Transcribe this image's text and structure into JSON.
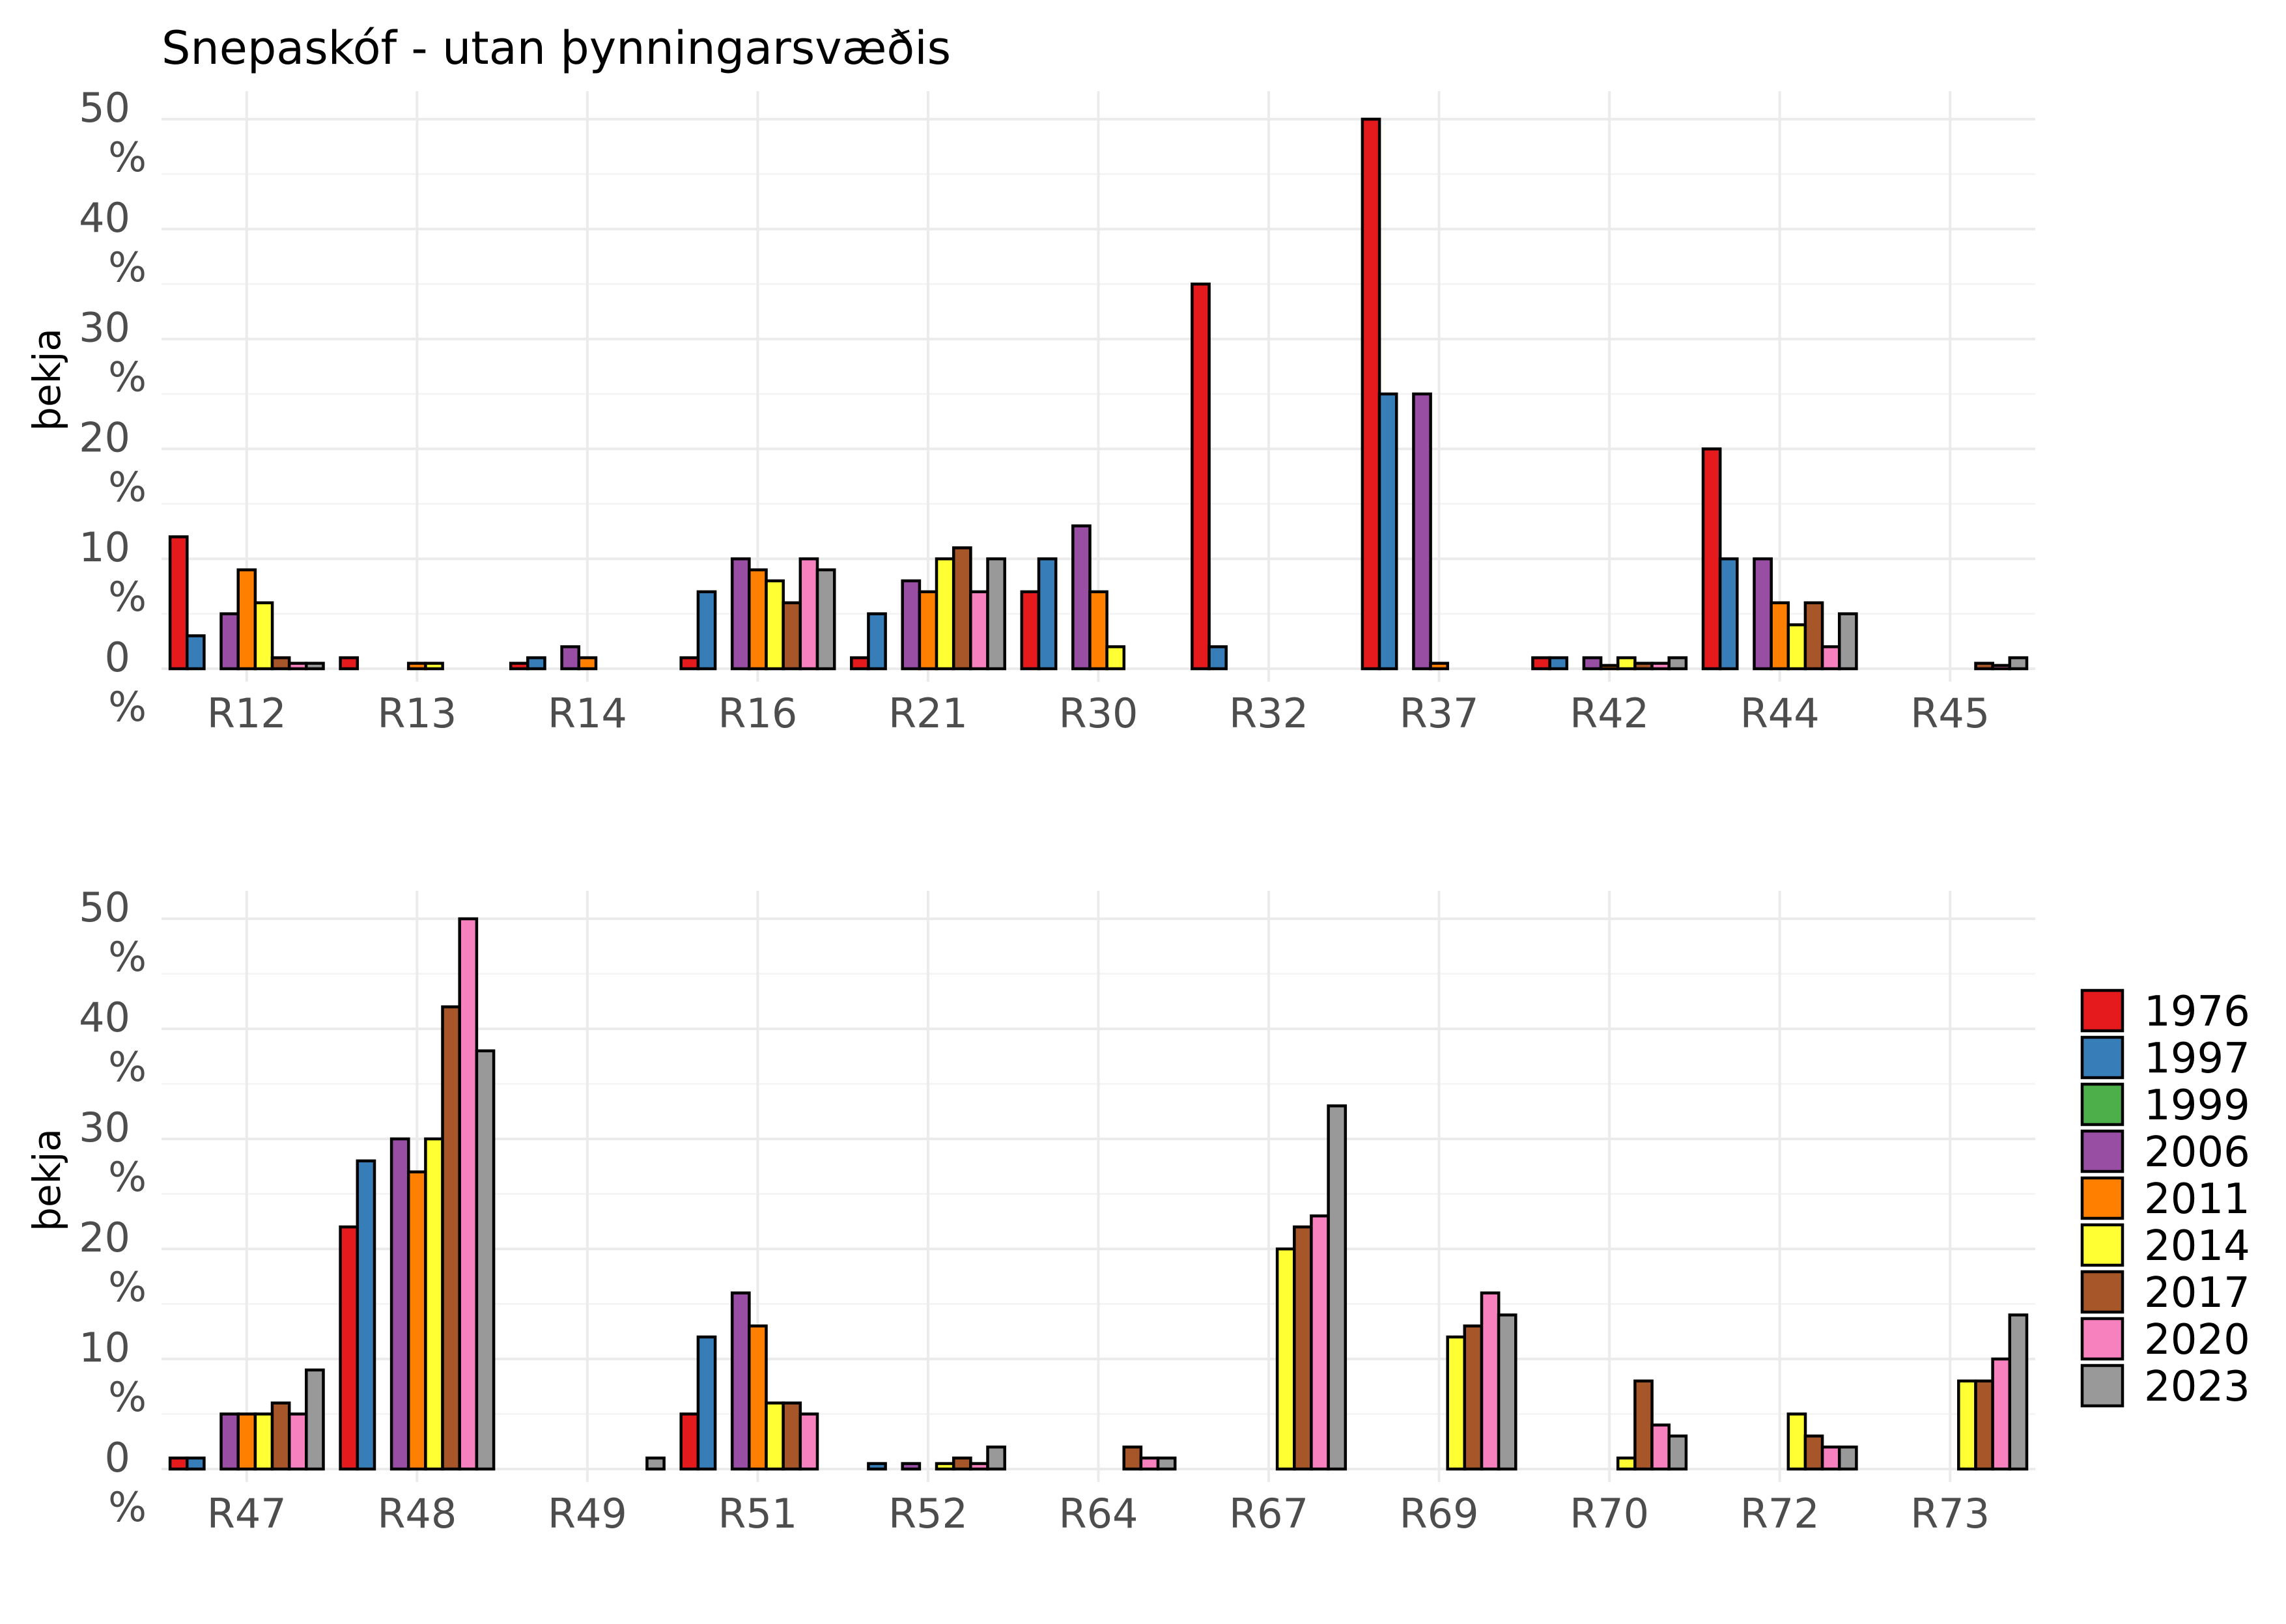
{
  "chart_data": [
    {
      "type": "bar",
      "title": "Snepaskóf - utan þynningarsvæðis",
      "ylabel": "þekja",
      "ylim": [
        0,
        50
      ],
      "ytick_values": [
        0,
        10,
        20,
        30,
        40,
        50
      ],
      "ytick_labels": [
        [
          "0",
          "%"
        ],
        [
          "10",
          "%"
        ],
        [
          "20",
          "%"
        ],
        [
          "30",
          "%"
        ],
        [
          "40",
          "%"
        ],
        [
          "50",
          "%"
        ]
      ],
      "grid": true,
      "categories": [
        "R12",
        "R13",
        "R14",
        "R16",
        "R21",
        "R30",
        "R32",
        "R37",
        "R42",
        "R44",
        "R45"
      ],
      "series": [
        {
          "name": "1976",
          "values": [
            12,
            1,
            0.5,
            1,
            1,
            7,
            35,
            50,
            1,
            20,
            null
          ]
        },
        {
          "name": "1997",
          "values": [
            3,
            null,
            1,
            7,
            5,
            10,
            2,
            25,
            1,
            10,
            null
          ]
        },
        {
          "name": "1999",
          "values": [
            null,
            null,
            null,
            null,
            null,
            null,
            null,
            null,
            null,
            null,
            null
          ]
        },
        {
          "name": "2006",
          "values": [
            5,
            null,
            2,
            10,
            8,
            13,
            null,
            25,
            1,
            10,
            null
          ]
        },
        {
          "name": "2011",
          "values": [
            9,
            0.5,
            1,
            9,
            7,
            7,
            null,
            0.5,
            0.3,
            6,
            null
          ]
        },
        {
          "name": "2014",
          "values": [
            6,
            0.5,
            null,
            8,
            10,
            2,
            null,
            null,
            1,
            4,
            null
          ]
        },
        {
          "name": "2017",
          "values": [
            1,
            null,
            null,
            6,
            11,
            null,
            null,
            null,
            0.5,
            6,
            0.5
          ]
        },
        {
          "name": "2020",
          "values": [
            0.5,
            null,
            null,
            10,
            7,
            null,
            null,
            null,
            0.5,
            2,
            0.3
          ]
        },
        {
          "name": "2023",
          "values": [
            0.5,
            null,
            null,
            9,
            10,
            null,
            null,
            null,
            1,
            5,
            1
          ]
        }
      ]
    },
    {
      "type": "bar",
      "title": "",
      "ylabel": "þekja",
      "ylim": [
        0,
        50
      ],
      "ytick_values": [
        0,
        10,
        20,
        30,
        40,
        50
      ],
      "ytick_labels": [
        [
          "0",
          "%"
        ],
        [
          "10",
          "%"
        ],
        [
          "20",
          "%"
        ],
        [
          "30",
          "%"
        ],
        [
          "40",
          "%"
        ],
        [
          "50",
          "%"
        ]
      ],
      "grid": true,
      "categories": [
        "R47",
        "R48",
        "R49",
        "R51",
        "R52",
        "R64",
        "R67",
        "R69",
        "R70",
        "R72",
        "R73"
      ],
      "series": [
        {
          "name": "1976",
          "values": [
            1,
            22,
            null,
            5,
            null,
            null,
            null,
            null,
            null,
            null,
            null
          ]
        },
        {
          "name": "1997",
          "values": [
            1,
            28,
            null,
            12,
            0.5,
            null,
            null,
            null,
            null,
            null,
            null
          ]
        },
        {
          "name": "1999",
          "values": [
            null,
            null,
            null,
            null,
            null,
            null,
            null,
            null,
            null,
            null,
            null
          ]
        },
        {
          "name": "2006",
          "values": [
            5,
            30,
            null,
            16,
            0.5,
            null,
            null,
            null,
            null,
            null,
            null
          ]
        },
        {
          "name": "2011",
          "values": [
            5,
            27,
            null,
            13,
            null,
            null,
            null,
            null,
            null,
            null,
            null
          ]
        },
        {
          "name": "2014",
          "values": [
            5,
            30,
            null,
            6,
            0.5,
            null,
            20,
            12,
            1,
            5,
            8
          ]
        },
        {
          "name": "2017",
          "values": [
            6,
            42,
            null,
            6,
            1,
            2,
            22,
            13,
            8,
            3,
            8
          ]
        },
        {
          "name": "2020",
          "values": [
            5,
            50,
            null,
            5,
            0.5,
            1,
            23,
            16,
            4,
            2,
            10
          ]
        },
        {
          "name": "2023",
          "values": [
            9,
            38,
            1,
            null,
            2,
            1,
            33,
            14,
            3,
            2,
            14
          ]
        }
      ]
    }
  ],
  "legend": {
    "position": "right",
    "items": [
      {
        "label": "1976",
        "color": "#E41A1C"
      },
      {
        "label": "1997",
        "color": "#377EB8"
      },
      {
        "label": "1999",
        "color": "#4DAF4A"
      },
      {
        "label": "2006",
        "color": "#984EA3"
      },
      {
        "label": "2011",
        "color": "#FF7F00"
      },
      {
        "label": "2014",
        "color": "#FFFF33"
      },
      {
        "label": "2017",
        "color": "#A65628"
      },
      {
        "label": "2020",
        "color": "#F781BF"
      },
      {
        "label": "2023",
        "color": "#999999"
      }
    ]
  }
}
